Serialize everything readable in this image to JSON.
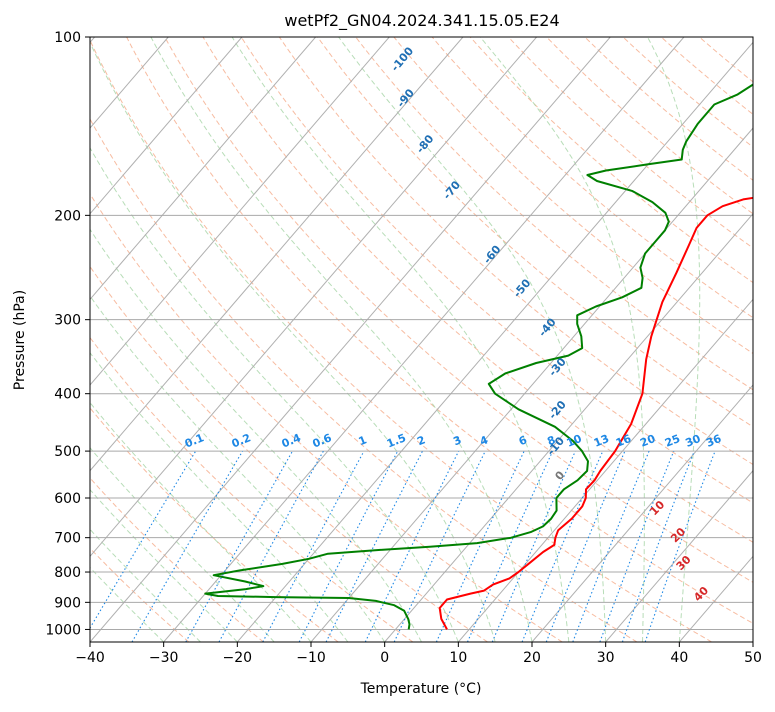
{
  "chart_data": {
    "type": "line",
    "subtype": "skew-t log-p diagram",
    "title": "wetPf2_GN04.2024.341.15.05.E24",
    "xlabel": "Temperature (°C)",
    "ylabel": "Pressure (hPa)",
    "xlim": [
      -40,
      50
    ],
    "ylim": [
      1050,
      100
    ],
    "y_scale": "log",
    "x_ticks": [
      -40,
      -30,
      -20,
      -10,
      0,
      10,
      20,
      30,
      40,
      50
    ],
    "y_ticks": [
      100,
      200,
      300,
      400,
      500,
      600,
      700,
      800,
      900,
      1000
    ],
    "grid": true,
    "colors": {
      "temperature": "#ff0000",
      "dewpoint": "#008000",
      "isotherm": "#b0b0b0",
      "dry_adiabat": "#f4a582",
      "moist_adiabat": "#a6d5a6",
      "mixing_ratio": "#1e88e5",
      "isentrope_label": "#1f6fb4",
      "theta_e_label": "#d62728",
      "isobar": "#a9a9a9",
      "ice_line": "#d2b48c"
    },
    "series": [
      {
        "name": "",
        "role": "temperature",
        "points": [
          [
            7.0,
            1000
          ],
          [
            5.0,
            960
          ],
          [
            3.5,
            920
          ],
          [
            3.5,
            890
          ],
          [
            6.0,
            870
          ],
          [
            7.5,
            860
          ],
          [
            8.0,
            840
          ],
          [
            9.5,
            820
          ],
          [
            10.0,
            800
          ],
          [
            10.5,
            770
          ],
          [
            11.0,
            740
          ],
          [
            11.7,
            720
          ],
          [
            11.0,
            700
          ],
          [
            10.5,
            680
          ],
          [
            11.0,
            650
          ],
          [
            11.0,
            620
          ],
          [
            10.5,
            600
          ],
          [
            9.5,
            580
          ],
          [
            9.6,
            560
          ],
          [
            9.3,
            540
          ],
          [
            9.0,
            500
          ],
          [
            8.0,
            450
          ],
          [
            6.0,
            400
          ],
          [
            2.5,
            350
          ],
          [
            0.5,
            320
          ],
          [
            -2.0,
            280
          ],
          [
            -3.5,
            250
          ],
          [
            -5.0,
            225
          ],
          [
            -6.0,
            210
          ],
          [
            -6.0,
            200
          ],
          [
            -5.0,
            193
          ],
          [
            -3.0,
            188
          ],
          [
            0.0,
            185
          ],
          [
            5.0,
            180
          ],
          [
            10.0,
            173
          ],
          [
            13.0,
            168
          ],
          [
            14.0,
            160
          ],
          [
            15.0,
            150
          ],
          [
            18.0,
            140
          ],
          [
            22.0,
            130
          ],
          [
            25.0,
            120
          ],
          [
            28.0,
            112
          ],
          [
            30.0,
            107
          ],
          [
            30.5,
            100
          ]
        ]
      },
      {
        "name": "",
        "role": "dewpoint",
        "points": [
          [
            1.8,
            1000
          ],
          [
            1.3,
            980
          ],
          [
            0.5,
            960
          ],
          [
            -1.0,
            930
          ],
          [
            -3.0,
            910
          ],
          [
            -6.0,
            895
          ],
          [
            -10.0,
            885
          ],
          [
            -20.0,
            882
          ],
          [
            -28.0,
            878
          ],
          [
            -30.0,
            870
          ],
          [
            -25.0,
            855
          ],
          [
            -23.0,
            845
          ],
          [
            -26.0,
            830
          ],
          [
            -31.0,
            810
          ],
          [
            -28.0,
            795
          ],
          [
            -23.0,
            775
          ],
          [
            -20.0,
            760
          ],
          [
            -18.0,
            745
          ],
          [
            -12.0,
            735
          ],
          [
            -5.0,
            725
          ],
          [
            1.0,
            715
          ],
          [
            5.0,
            700
          ],
          [
            7.0,
            685
          ],
          [
            8.0,
            670
          ],
          [
            8.2,
            650
          ],
          [
            8.0,
            630
          ],
          [
            6.5,
            600
          ],
          [
            6.5,
            580
          ],
          [
            7.3,
            560
          ],
          [
            7.5,
            540
          ],
          [
            6.5,
            520
          ],
          [
            4.5,
            500
          ],
          [
            2.0,
            480
          ],
          [
            -2.0,
            455
          ],
          [
            -9.0,
            425
          ],
          [
            -14.0,
            400
          ],
          [
            -16.0,
            385
          ],
          [
            -15.0,
            370
          ],
          [
            -12.0,
            355
          ],
          [
            -8.5,
            345
          ],
          [
            -7.5,
            335
          ],
          [
            -9.0,
            320
          ],
          [
            -11.0,
            305
          ],
          [
            -12.0,
            295
          ],
          [
            -10.5,
            285
          ],
          [
            -8.0,
            275
          ],
          [
            -6.5,
            265
          ],
          [
            -7.5,
            255
          ],
          [
            -9.0,
            245
          ],
          [
            -10.0,
            232
          ],
          [
            -10.0,
            220
          ],
          [
            -10.0,
            212
          ],
          [
            -10.5,
            205
          ],
          [
            -12.0,
            198
          ],
          [
            -15.0,
            190
          ],
          [
            -19.0,
            182
          ],
          [
            -25.0,
            175
          ],
          [
            -27.0,
            171
          ],
          [
            -25.0,
            168
          ],
          [
            -20.0,
            164
          ],
          [
            -16.0,
            161
          ],
          [
            -17.0,
            155
          ],
          [
            -17.5,
            150
          ],
          [
            -18.0,
            140
          ],
          [
            -18.0,
            130
          ],
          [
            -16.0,
            125
          ],
          [
            -15.0,
            120
          ],
          [
            -14.0,
            115
          ],
          [
            -12.0,
            110
          ],
          [
            -10.0,
            105
          ],
          [
            -7.0,
            100
          ]
        ]
      }
    ],
    "isentrope_labels": [
      "-100",
      "-90",
      "-80",
      "-70",
      "-60",
      "-50",
      "-40",
      "-30",
      "-20",
      "-10",
      "0"
    ],
    "theta_e_labels": [
      "10",
      "20",
      "30",
      "40"
    ],
    "mixing_ratio_labels": [
      "0.1",
      "0.2",
      "0.4",
      "0.6",
      "1",
      "1.5",
      "2",
      "3",
      "4",
      "6",
      "8",
      "10",
      "13",
      "16",
      "20",
      "25",
      "30",
      "36"
    ]
  }
}
